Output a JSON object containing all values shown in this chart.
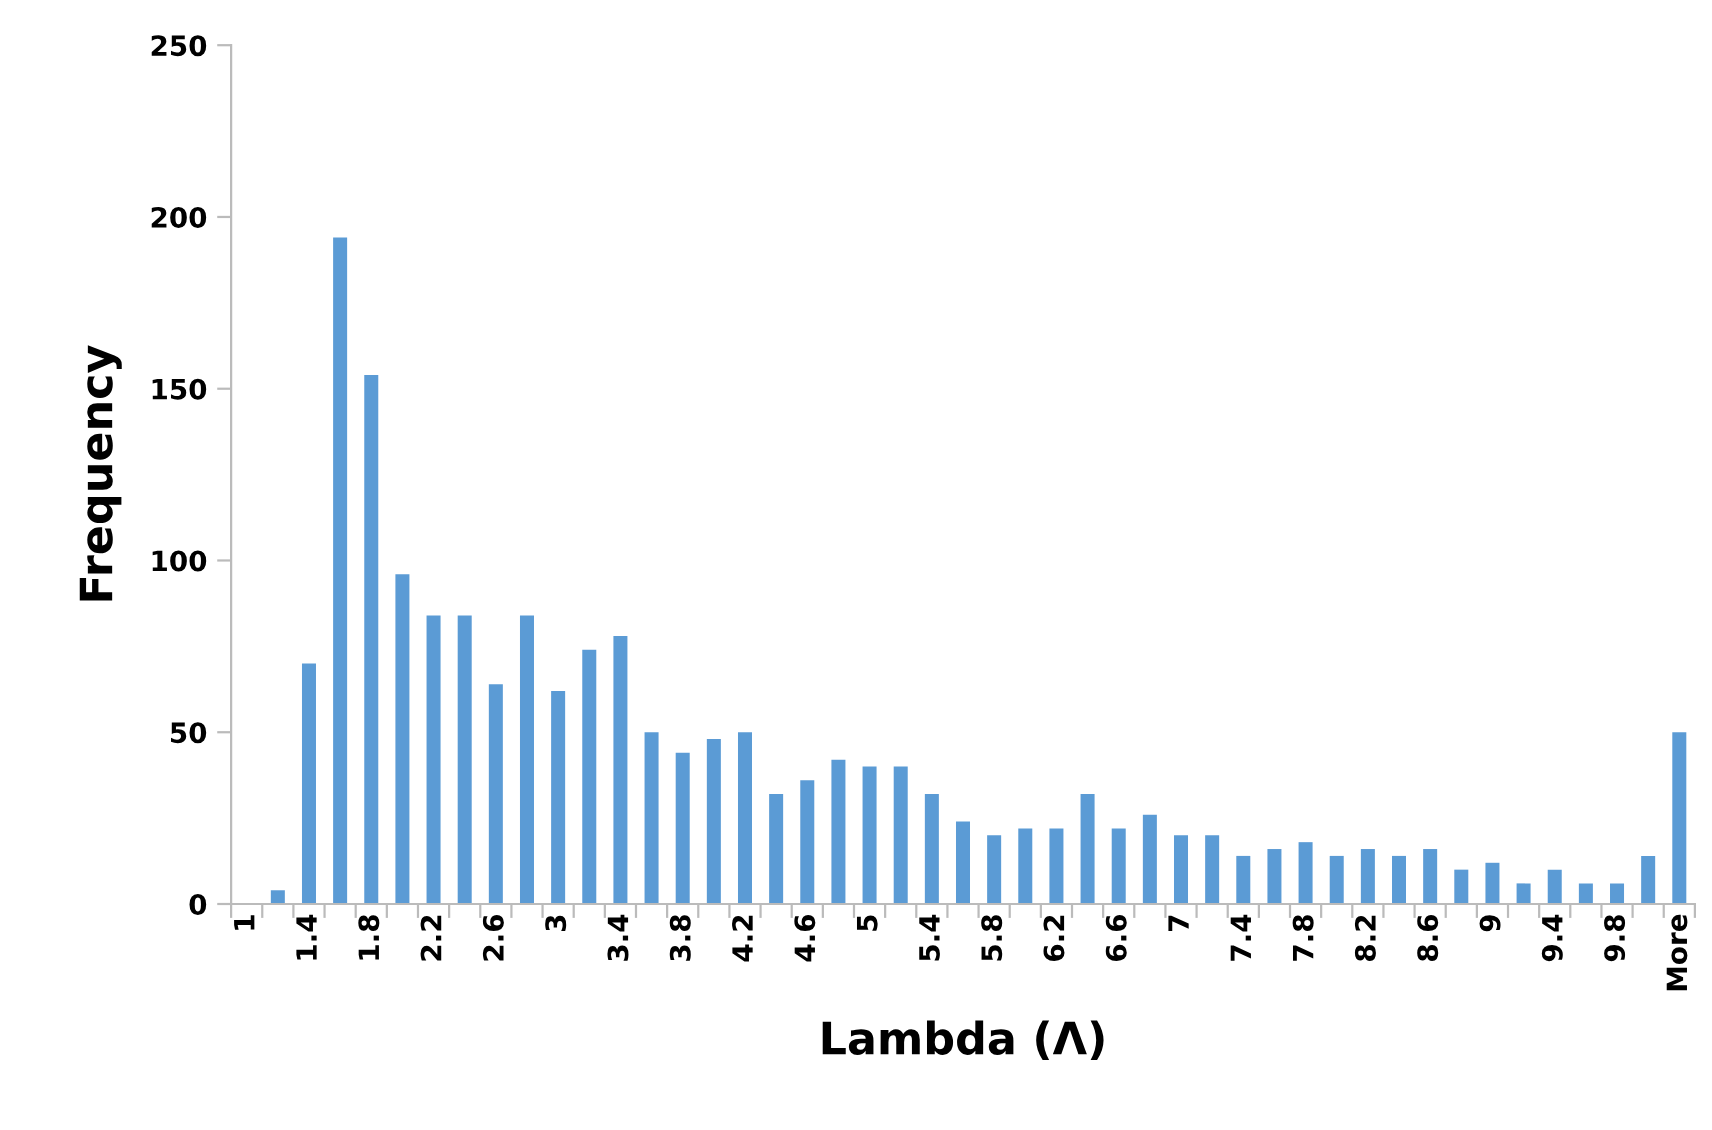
{
  "chart_data": {
    "type": "bar",
    "xlabel": "Lambda (Λ)",
    "ylabel": "Frequency",
    "categories": [
      "1",
      null,
      "1.4",
      null,
      "1.8",
      null,
      "2.2",
      null,
      "2.6",
      null,
      "3",
      null,
      "3.4",
      null,
      "3.8",
      null,
      "4.2",
      null,
      "4.6",
      null,
      "5",
      null,
      "5.4",
      null,
      "5.8",
      null,
      "6.2",
      null,
      "6.6",
      null,
      "7",
      null,
      "7.4",
      null,
      "7.8",
      null,
      "8.2",
      null,
      "8.6",
      null,
      "9",
      null,
      "9.4",
      null,
      "9.8",
      null,
      "More"
    ],
    "values": [
      0,
      4,
      70,
      194,
      154,
      96,
      84,
      84,
      64,
      84,
      62,
      74,
      78,
      50,
      44,
      48,
      50,
      32,
      36,
      42,
      40,
      40,
      32,
      24,
      20,
      22,
      22,
      32,
      22,
      26,
      20,
      20,
      14,
      16,
      18,
      14,
      16,
      14,
      16,
      10,
      12,
      6,
      10,
      6,
      6,
      14,
      50
    ],
    "color": "#5b9bd5",
    "ylim": [
      0,
      250
    ],
    "yticks": [
      0,
      50,
      100,
      150,
      200,
      250
    ],
    "grid": false,
    "legend": false
  }
}
